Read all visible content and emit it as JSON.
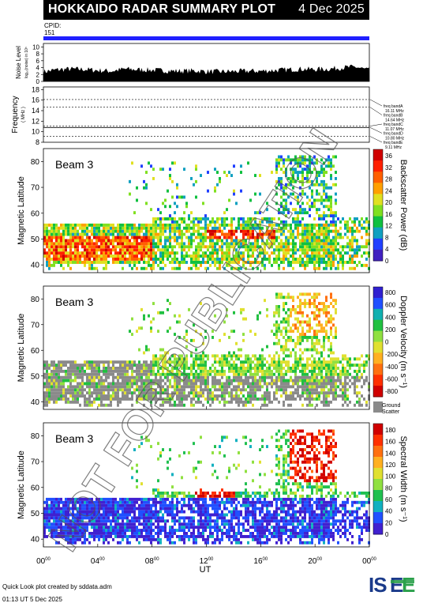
{
  "header": {
    "title": "HOKKAIDO RADAR SUMMARY PLOT",
    "date": "4 Dec 2025",
    "cpid_label": "CPID:",
    "cpid_value": "151"
  },
  "footer": {
    "line1": "Quick Look plot created by sddata.adm",
    "line2": "01:13 UT  5 Dec 2025"
  },
  "watermark": "NOT FOR PUBLICATION",
  "logo_text": "ISEE",
  "chart_data": [
    {
      "type": "area",
      "ylabel": "Noise Level",
      "ylabel_sub": "log₁₀(noise) in 10⁵",
      "y_ticks": [
        "0",
        "2",
        "4",
        "6",
        "8",
        "10"
      ],
      "ylim": [
        0,
        11
      ],
      "x_hours": [
        0,
        1,
        2,
        3,
        4,
        5,
        6,
        7,
        8,
        9,
        10,
        11,
        12,
        13,
        14,
        15,
        16,
        17,
        18,
        19,
        20,
        21,
        22,
        23,
        24
      ],
      "values": [
        2.8,
        3.4,
        3.6,
        3.5,
        3.2,
        3.0,
        3.6,
        3.4,
        3.3,
        3.1,
        3.0,
        3.1,
        2.9,
        2.8,
        2.9,
        3.0,
        3.0,
        3.2,
        3.4,
        3.6,
        3.5,
        3.6,
        4.0,
        4.2,
        3.2
      ],
      "color": "#000000"
    },
    {
      "type": "line",
      "ylabel": "Frequency",
      "ylabel_sub": "( MHz )",
      "y_ticks": [
        "8",
        "10",
        "12",
        "14",
        "16",
        "18"
      ],
      "ylim": [
        8,
        18.5
      ],
      "series": [
        {
          "name": "freq bandA",
          "label_value": "16.11 MHz",
          "value": 16.11,
          "style": "dotted"
        },
        {
          "name": "freq bandB",
          "label_value": "14.64 MHz",
          "value": 14.64,
          "style": "dotted"
        },
        {
          "name": "freq bandC",
          "label_value": "11.07 MHz",
          "value": 11.07,
          "style": "dotted"
        },
        {
          "name": "freq bandD",
          "label_value": "10.80 MHz",
          "value": 10.8,
          "style": "solid"
        },
        {
          "name": "freq bandE",
          "label_value": "9.11 MHz",
          "value": 9.11,
          "style": "dotted"
        }
      ]
    },
    {
      "type": "heatmap",
      "panel": "power",
      "annotation": "Beam 3",
      "ylabel": "Magnetic Latitude",
      "y_ticks": [
        "40",
        "50",
        "60",
        "70",
        "80"
      ],
      "ylim": [
        37,
        85
      ],
      "colorbar_label": "Backscatter Power (dB)",
      "colorbar_ticks": [
        "0",
        "4",
        "8",
        "12",
        "16",
        "20",
        "24",
        "28",
        "32",
        "36"
      ],
      "colorbar_range": [
        0,
        38
      ],
      "colors": [
        "#4020c0",
        "#2040ff",
        "#10a0c0",
        "#10c040",
        "#80e020",
        "#e0e020",
        "#ffa000",
        "#ff6000",
        "#ff2000",
        "#d00000"
      ]
    },
    {
      "type": "heatmap",
      "panel": "velocity",
      "annotation": "Beam 3",
      "ylabel": "Magnetic Latitude",
      "y_ticks": [
        "40",
        "50",
        "60",
        "70",
        "80"
      ],
      "ylim": [
        37,
        85
      ],
      "colorbar_label": "Doppler Velocity (m s⁻¹)",
      "colorbar_ticks": [
        "800",
        "600",
        "400",
        "200",
        "0",
        "-200",
        "-400",
        "-600",
        "-800"
      ],
      "colorbar_range": [
        -900,
        900
      ],
      "ground_scatter_label": "Ground Scatter",
      "colors": [
        "#3020d0",
        "#2050ff",
        "#10b0b0",
        "#20c040",
        "#90e040",
        "#e0e030",
        "#ffb020",
        "#ff7010",
        "#ff3000",
        "#d00000"
      ]
    },
    {
      "type": "heatmap",
      "panel": "width",
      "annotation": "Beam 3",
      "ylabel": "Magnetic Latitude",
      "y_ticks": [
        "40",
        "50",
        "60",
        "70",
        "80"
      ],
      "ylim": [
        37,
        85
      ],
      "colorbar_label": "Spectral Width (m s⁻¹)",
      "colorbar_ticks": [
        "0",
        "20",
        "40",
        "60",
        "80",
        "100",
        "120",
        "140",
        "160",
        "180"
      ],
      "colorbar_range": [
        0,
        190
      ],
      "colors": [
        "#4020d0",
        "#2050ff",
        "#10b0c0",
        "#20c050",
        "#90e040",
        "#e0e030",
        "#ffb020",
        "#ff7010",
        "#ff3000",
        "#d00000"
      ]
    }
  ],
  "x_axis": {
    "label": "UT",
    "ticks": [
      {
        "h": "00",
        "m": "00",
        "hour": 0
      },
      {
        "h": "04",
        "m": "00",
        "hour": 4
      },
      {
        "h": "08",
        "m": "00",
        "hour": 8
      },
      {
        "h": "12",
        "m": "00",
        "hour": 12
      },
      {
        "h": "16",
        "m": "00",
        "hour": 16
      },
      {
        "h": "20",
        "m": "00",
        "hour": 20
      },
      {
        "h": "00",
        "m": "00",
        "hour": 24
      }
    ]
  }
}
